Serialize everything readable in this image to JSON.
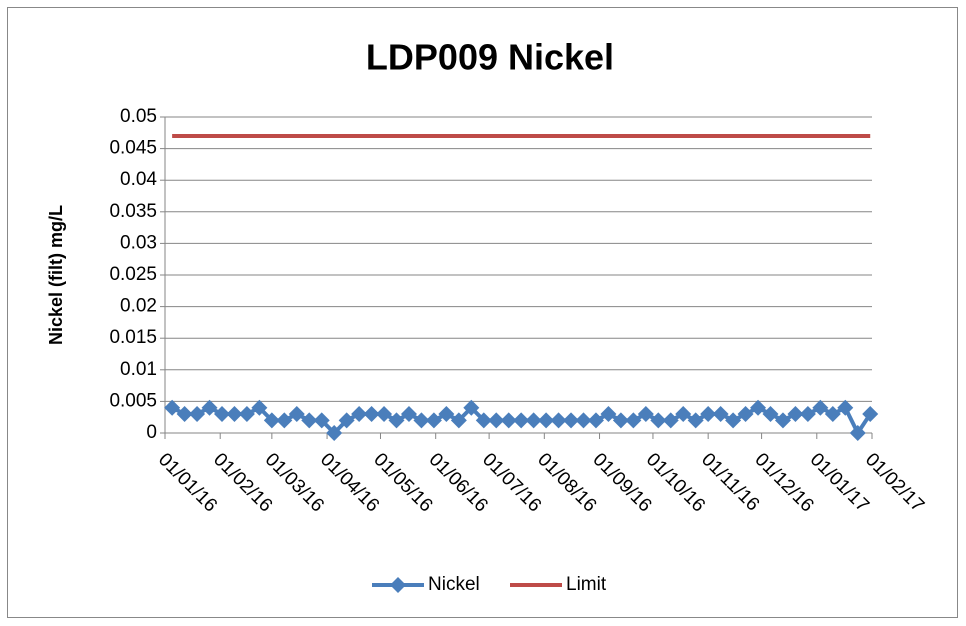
{
  "chart_data": {
    "type": "line",
    "title": "LDP009 Nickel",
    "y_label": "Nickel (filt) mg/L",
    "x": [
      "05/01/16",
      "12/01/16",
      "19/01/16",
      "26/01/16",
      "02/02/16",
      "09/02/16",
      "16/02/16",
      "23/02/16",
      "01/03/16",
      "08/03/16",
      "15/03/16",
      "22/03/16",
      "29/03/16",
      "05/04/16",
      "12/04/16",
      "19/04/16",
      "26/04/16",
      "03/05/16",
      "10/05/16",
      "17/05/16",
      "24/05/16",
      "31/05/16",
      "07/06/16",
      "14/06/16",
      "21/06/16",
      "28/06/16",
      "05/07/16",
      "12/07/16",
      "19/07/16",
      "26/07/16",
      "02/08/16",
      "09/08/16",
      "16/08/16",
      "23/08/16",
      "30/08/16",
      "06/09/16",
      "13/09/16",
      "20/09/16",
      "27/09/16",
      "04/10/16",
      "11/10/16",
      "18/10/16",
      "25/10/16",
      "01/11/16",
      "08/11/16",
      "15/11/16",
      "22/11/16",
      "29/11/16",
      "06/12/16",
      "13/12/16",
      "20/12/16",
      "27/12/16",
      "03/01/17",
      "10/01/17",
      "17/01/17",
      "24/01/17",
      "31/01/17"
    ],
    "series": [
      {
        "name": "Nickel",
        "color": "#4a7ebb",
        "marker": "diamond",
        "values": [
          0.004,
          0.003,
          0.003,
          0.004,
          0.003,
          0.003,
          0.003,
          0.004,
          0.002,
          0.002,
          0.003,
          0.002,
          0.002,
          0,
          0.002,
          0.003,
          0.003,
          0.003,
          0.002,
          0.003,
          0.002,
          0.002,
          0.003,
          0.002,
          0.004,
          0.002,
          0.002,
          0.002,
          0.002,
          0.002,
          0.002,
          0.002,
          0.002,
          0.002,
          0.002,
          0.003,
          0.002,
          0.002,
          0.003,
          0.002,
          0.002,
          0.003,
          0.002,
          0.003,
          0.003,
          0.002,
          0.003,
          0.004,
          0.003,
          0.002,
          0.003,
          0.003,
          0.004,
          0.003,
          0.004,
          0,
          0.003
        ]
      },
      {
        "name": "Limit",
        "color": "#be4b48",
        "values": [
          0.047,
          0.047,
          0.047,
          0.047,
          0.047,
          0.047,
          0.047,
          0.047,
          0.047,
          0.047,
          0.047,
          0.047,
          0.047,
          0.047,
          0.047,
          0.047,
          0.047,
          0.047,
          0.047,
          0.047,
          0.047,
          0.047,
          0.047,
          0.047,
          0.047,
          0.047,
          0.047,
          0.047,
          0.047,
          0.047,
          0.047,
          0.047,
          0.047,
          0.047,
          0.047,
          0.047,
          0.047,
          0.047,
          0.047,
          0.047,
          0.047,
          0.047,
          0.047,
          0.047,
          0.047,
          0.047,
          0.047,
          0.047,
          0.047,
          0.047,
          0.047,
          0.047,
          0.047,
          0.047,
          0.047,
          0.047,
          0.047
        ]
      }
    ],
    "xlim": [
      "01/01/16",
      "01/02/17"
    ],
    "xticks": [
      "01/01/16",
      "01/02/16",
      "01/03/16",
      "01/04/16",
      "01/05/16",
      "01/06/16",
      "01/07/16",
      "01/08/16",
      "01/09/16",
      "01/10/16",
      "01/11/16",
      "01/12/16",
      "01/01/17",
      "01/02/17"
    ],
    "ylim": [
      0,
      0.05
    ],
    "yticks": [
      0,
      0.005,
      0.01,
      0.015,
      0.02,
      0.025,
      0.03,
      0.035,
      0.04,
      0.045,
      0.05
    ],
    "grid": true,
    "legend": "bottom"
  }
}
